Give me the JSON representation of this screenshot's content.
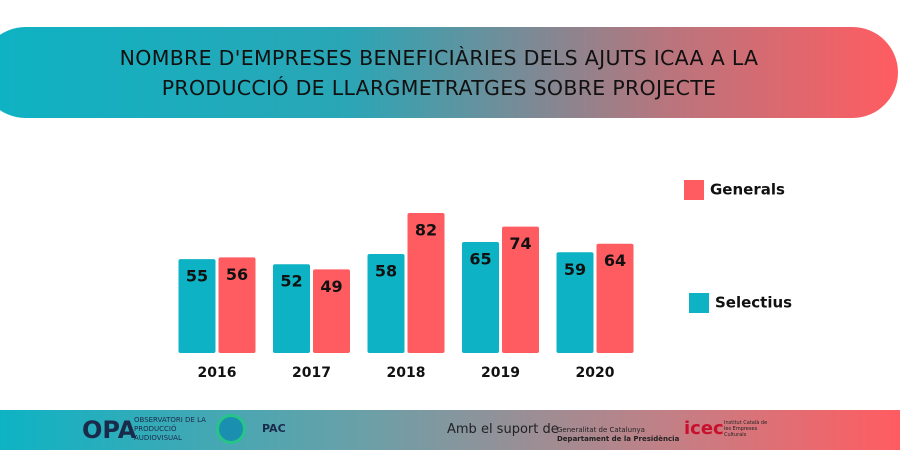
{
  "chart_data": {
    "type": "bar",
    "title": "NOMBRE D'EMPRESES BENEFICIÀRIES DELS AJUTS ICAA A LA PRODUCCIÓ DE LLARGMETRATGES SOBRE PROJECTE",
    "categories": [
      "2016",
      "2017",
      "2018",
      "2019",
      "2020"
    ],
    "series": [
      {
        "name": "Selectius",
        "color": "#0db3c4",
        "values": [
          55,
          52,
          58,
          65,
          59
        ]
      },
      {
        "name": "Generals",
        "color": "#ff5c61",
        "values": [
          56,
          49,
          82,
          74,
          64
        ]
      }
    ],
    "legend": "right"
  },
  "footer": {
    "brand": "OPA",
    "brand_sub": "OBSERVATORI DE LA PRODUCCIÓ AUDIOVISUAL",
    "pac": "PAC",
    "support": "Amb el suport de",
    "gov": "Generalitat de Catalunya",
    "dept": "Departament de la Presidència",
    "icec": "icec",
    "icec_sub": "Institut Català de les Empreses Culturals"
  }
}
